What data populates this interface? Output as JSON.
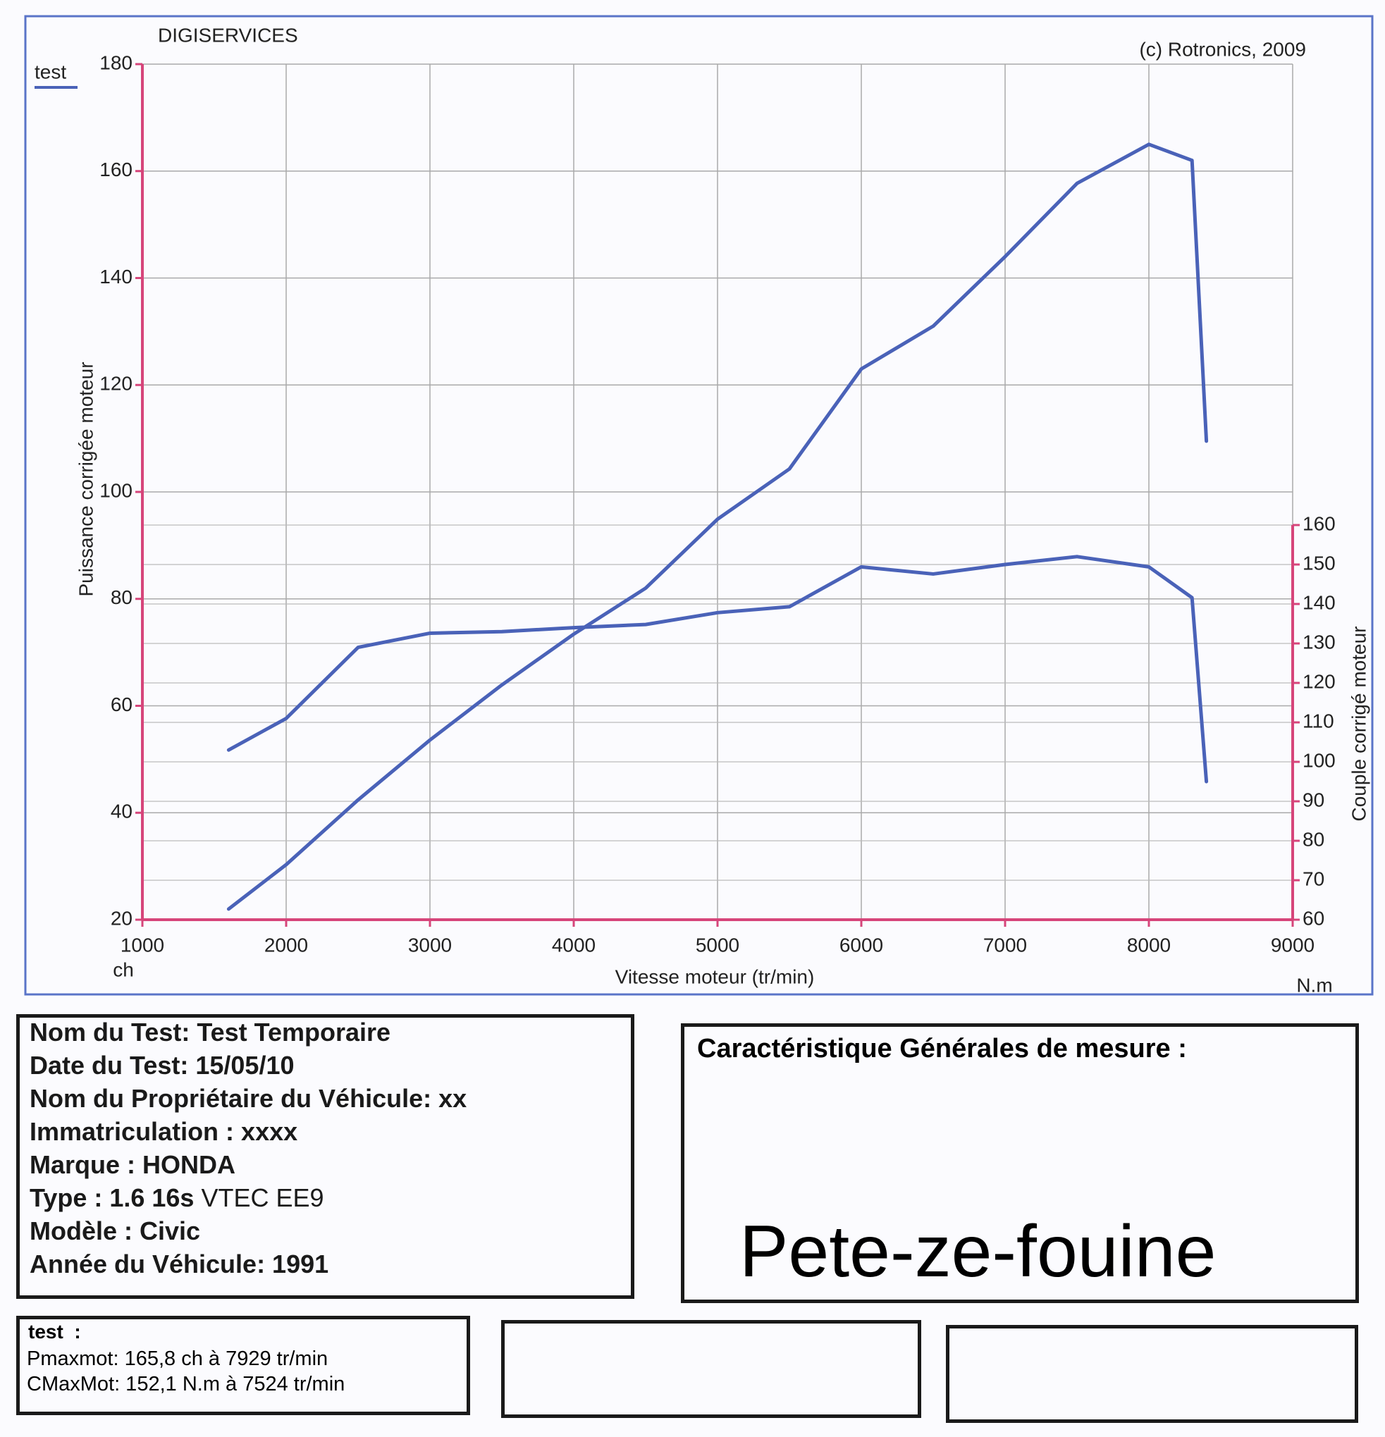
{
  "chart_data": {
    "type": "line",
    "title": "DIGISERVICES",
    "copyright": "(c) Rotronics, 2009",
    "x_label": "Vitesse moteur (tr/min)",
    "y_label": "Puissance corrigée moteur",
    "y2_label": "Couple corrigé moteur",
    "y_unit": "ch",
    "y2_unit": "N.m",
    "x": [
      1600,
      2000,
      2500,
      3000,
      3500,
      4000,
      4500,
      5000,
      5500,
      6000,
      6500,
      7000,
      7500,
      8000,
      8300,
      8400
    ],
    "series": [
      {
        "name": "test",
        "color": "#4a62b8",
        "values": [
          22,
          30.3,
          42.4,
          53.6,
          63.9,
          73.4,
          82,
          94.9,
          104.3,
          123,
          131,
          144,
          157.7,
          165,
          162,
          109.5
        ]
      },
      {
        "color": "#4a62b8",
        "axis": "y2",
        "values": [
          103,
          111,
          129,
          132.6,
          133,
          134,
          134.8,
          137.8,
          139.3,
          149.4,
          147.6,
          150,
          152,
          149.4,
          141.6,
          95
        ]
      }
    ],
    "xlim": [
      1000,
      9000
    ],
    "xticks": [
      1000,
      2000,
      3000,
      4000,
      5000,
      6000,
      7000,
      8000,
      9000
    ],
    "ylim": [
      20,
      180
    ],
    "yticks": [
      20,
      40,
      60,
      80,
      100,
      120,
      140,
      160,
      180
    ],
    "y2lim": [
      60,
      160
    ],
    "y2ticks": [
      60,
      70,
      80,
      90,
      100,
      110,
      120,
      130,
      140,
      150,
      160
    ],
    "grid": true,
    "legend": "top-left"
  },
  "vehicle_box": {
    "lines": [
      "Nom du Test: Test Temporaire",
      "Date du Test: 15/05/10",
      "Nom du Propriétaire du Véhicule: xx",
      "Immatriculation  : xxxx",
      "Marque  : HONDA",
      "Type  : 1.6 16s",
      "Modèle  : Civic",
      "Année du Véhicule: 1991"
    ],
    "type_suffix": "VTEC EE9"
  },
  "measure_box": {
    "title": "Caractéristique Générales de mesure :",
    "note": "Pete-ze-fouine"
  },
  "results_box": {
    "title": "test  :",
    "lines": [
      "Pmaxmot: 165,8 ch à 7929 tr/min",
      "CMaxMot: 152,1 N.m à 7524 tr/min"
    ]
  }
}
